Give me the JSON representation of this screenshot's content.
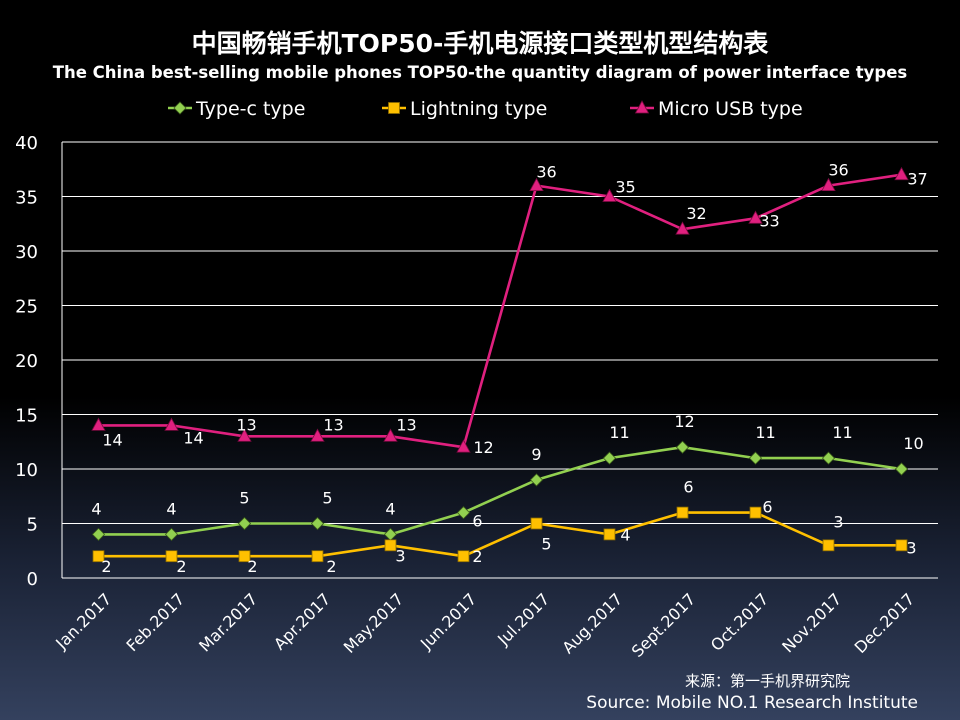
{
  "chart_data": {
    "type": "line",
    "title": "中国畅销手机TOP50-手机电源接口类型机型结构表",
    "subtitle": "The China best-selling mobile phones TOP50-the quantity diagram of power interface types",
    "categories": [
      "Jan.2017",
      "Feb.2017",
      "Mar.2017",
      "Apr.2017",
      "May.2017",
      "Jun.2017",
      "Jul.2017",
      "Aug.2017",
      "Sept.2017",
      "Oct.2017",
      "Nov.2017",
      "Dec.2017"
    ],
    "series": [
      {
        "name": "Type-c type",
        "color": "#92d050",
        "marker": "diamond",
        "values": [
          4,
          4,
          5,
          5,
          4,
          6,
          9,
          11,
          12,
          11,
          11,
          10
        ]
      },
      {
        "name": "Lightning type",
        "color": "#ffc000",
        "marker": "square",
        "values": [
          2,
          2,
          2,
          2,
          3,
          2,
          5,
          4,
          6,
          6,
          3,
          3
        ]
      },
      {
        "name": "Micro USB type",
        "color": "#e0207f",
        "marker": "triangle",
        "values": [
          14,
          14,
          13,
          13,
          13,
          12,
          36,
          35,
          32,
          33,
          36,
          37
        ]
      }
    ],
    "ylim": [
      0,
      40
    ],
    "yticks": [
      0,
      5,
      10,
      15,
      20,
      25,
      30,
      35,
      40
    ],
    "xlabel": "",
    "ylabel": "",
    "grid": true,
    "legend": "top-center"
  },
  "source": {
    "cn": "来源：第一手机界研究院",
    "en": "Source: Mobile NO.1 Research Institute"
  }
}
